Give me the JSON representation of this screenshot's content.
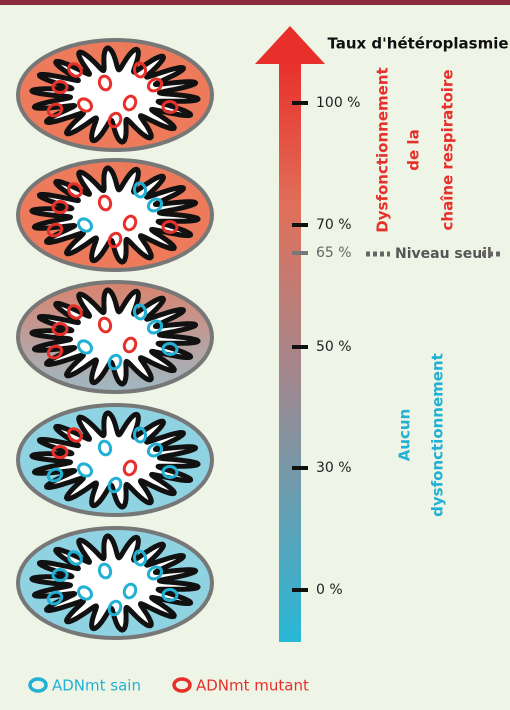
{
  "title": "Taux d'hétéroplasmie",
  "scale": [
    "100 %",
    "70 %",
    "65 %",
    "50 %",
    "30 %",
    "0 %"
  ],
  "threshold": "Niveau seuil",
  "upper_label": [
    "Dysfonctionnement",
    "de la",
    "chaîne respiratoire"
  ],
  "lower_label": [
    "Aucun",
    "dysfonctionnement"
  ],
  "legend": [
    "ADNmt sain",
    "ADNmt mutant"
  ]
}
